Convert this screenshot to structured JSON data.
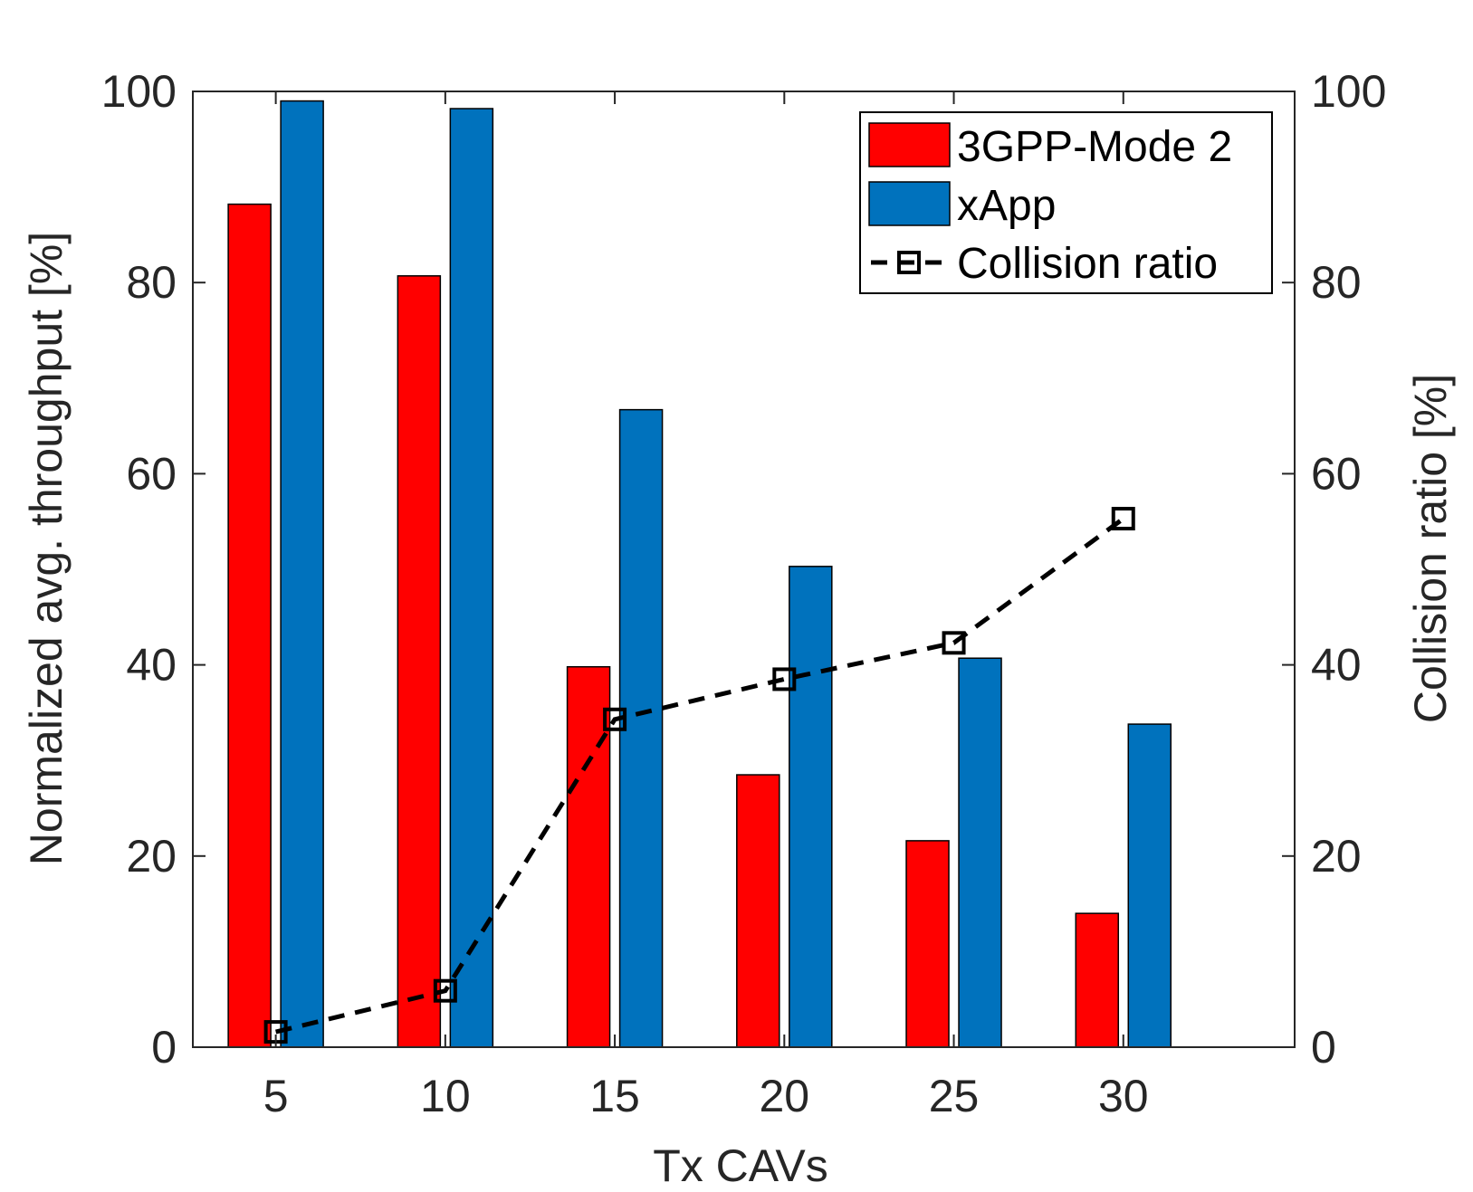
{
  "chart_data": {
    "type": "bar",
    "categories": [
      "5",
      "10",
      "15",
      "20",
      "25",
      "30"
    ],
    "series": [
      {
        "name": "3GPP-Mode 2",
        "kind": "bar",
        "color": "#ff0000",
        "values": [
          88.2,
          80.7,
          39.8,
          28.5,
          21.6,
          14.0
        ]
      },
      {
        "name": "xApp",
        "kind": "bar",
        "color": "#0072bd",
        "values": [
          99.0,
          98.2,
          66.7,
          50.3,
          40.7,
          33.8
        ]
      },
      {
        "name": "Collision ratio",
        "kind": "line",
        "axis": "right",
        "style": "dashed",
        "marker": "square",
        "color": "#000000",
        "values": [
          1.6,
          5.9,
          34.3,
          38.5,
          42.3,
          55.3
        ]
      }
    ],
    "xlabel": "Tx CAVs",
    "ylabel": "Normalized avg. throughput [%]",
    "ylabel_right": "Collision ratio [%]",
    "ylim": [
      0,
      100
    ],
    "ylim_right": [
      0,
      100
    ],
    "yticks": [
      "0",
      "20",
      "40",
      "60",
      "80",
      "100"
    ],
    "legend_position": "top-right",
    "grid": false
  }
}
